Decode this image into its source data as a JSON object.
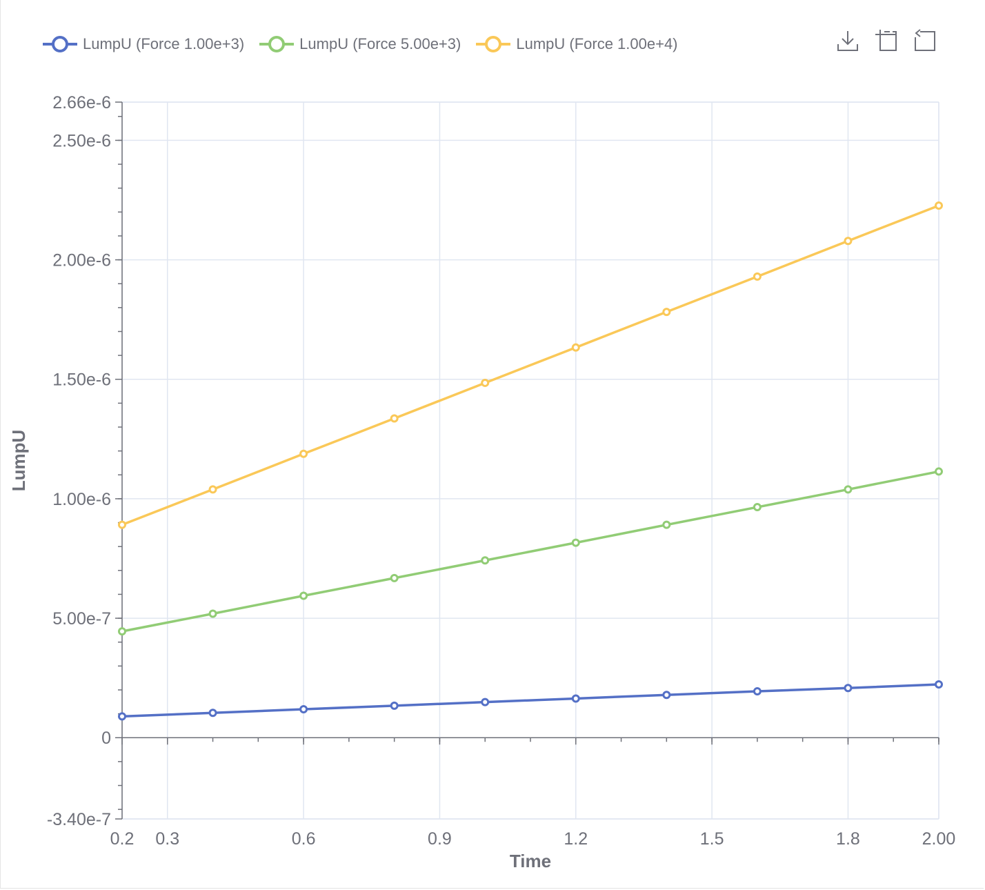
{
  "chart_data": {
    "type": "line",
    "xlabel": "Time",
    "ylabel": "LumpU",
    "xlim": [
      0.2,
      2.0
    ],
    "ylim": [
      -3.4e-07,
      2.66e-06
    ],
    "x_ticks": [
      "0.2",
      "0.3",
      "0.6",
      "0.9",
      "1.2",
      "1.5",
      "1.8",
      "2.00"
    ],
    "x_tick_values": [
      0.2,
      0.3,
      0.6,
      0.9,
      1.2,
      1.5,
      1.8,
      2.0
    ],
    "y_ticks": [
      "-3.40e-7",
      "0",
      "5.00e-7",
      "1.00e-6",
      "1.50e-6",
      "2.00e-6",
      "2.50e-6",
      "2.66e-6"
    ],
    "y_tick_values": [
      -3.4e-07,
      0,
      5e-07,
      1e-06,
      1.5e-06,
      2e-06,
      2.5e-06,
      2.66e-06
    ],
    "grid": true,
    "legend_position": "top-left",
    "x": [
      0.2,
      0.4,
      0.6,
      0.8,
      1.0,
      1.2,
      1.4,
      1.6,
      1.8,
      2.0
    ],
    "series": [
      {
        "name": "LumpU (Force 1.00e+3)",
        "color": "#5470c6",
        "values": [
          8.9e-08,
          1.04e-07,
          1.19e-07,
          1.34e-07,
          1.49e-07,
          1.64e-07,
          1.79e-07,
          1.94e-07,
          2.08e-07,
          2.23e-07
        ]
      },
      {
        "name": "LumpU (Force 5.00e+3)",
        "color": "#91cc75",
        "values": [
          4.45e-07,
          5.19e-07,
          5.94e-07,
          6.68e-07,
          7.42e-07,
          8.16e-07,
          8.91e-07,
          9.65e-07,
          1.039e-06,
          1.114e-06
        ]
      },
      {
        "name": "LumpU (Force 1.00e+4)",
        "color": "#fac858",
        "values": [
          8.91e-07,
          1.039e-06,
          1.188e-06,
          1.336e-06,
          1.485e-06,
          1.633e-06,
          1.782e-06,
          1.93e-06,
          2.079e-06,
          2.227e-06
        ]
      }
    ]
  },
  "toolbox": {
    "icons": [
      "download-icon",
      "zoom-icon",
      "reset-icon"
    ]
  }
}
